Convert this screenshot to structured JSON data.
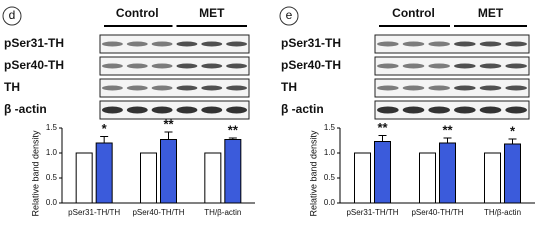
{
  "chart_data": [
    {
      "type": "bar",
      "panel_label": "d",
      "blot_rows": [
        "pSer31-TH",
        "pSer40-TH",
        "TH",
        "β -actin"
      ],
      "y_label": "Relative band density",
      "categories": [
        "pSer31-TH/TH",
        "pSer40-TH/TH",
        "TH/β-actin"
      ],
      "series": [
        {
          "name": "Control",
          "color": "#ffffff",
          "values": [
            1,
            1,
            1
          ]
        },
        {
          "name": "MET",
          "color": "#3b5bdb",
          "values": [
            1.2,
            1.27,
            1.27
          ],
          "errors": [
            0.13,
            0.15,
            0.03
          ],
          "value_labels": [
            "*",
            "**",
            "**"
          ]
        }
      ],
      "ylim": [
        0,
        1.5
      ],
      "yticks": [
        {
          "value": 0,
          "label": "0.0"
        },
        {
          "value": 0.5,
          "label": "0.5"
        },
        {
          "value": 1,
          "label": "1.0"
        },
        {
          "value": 1.5,
          "label": "1.5"
        }
      ]
    },
    {
      "type": "bar",
      "panel_label": "e",
      "blot_rows": [
        "pSer31-TH",
        "pSer40-TH",
        "TH",
        "β -actin"
      ],
      "y_label": "Relative band density",
      "categories": [
        "pSer31-TH/TH",
        "pSer40-TH/TH",
        "TH/β-actin"
      ],
      "series": [
        {
          "name": "Control",
          "color": "#ffffff",
          "values": [
            1,
            1,
            1
          ]
        },
        {
          "name": "MET",
          "color": "#3b5bdb",
          "values": [
            1.23,
            1.2,
            1.18
          ],
          "errors": [
            0.12,
            0.1,
            0.1
          ],
          "value_labels": [
            "**",
            "**",
            "*"
          ]
        }
      ],
      "ylim": [
        0,
        1.5
      ],
      "yticks": [
        {
          "value": 0,
          "label": "0.0"
        },
        {
          "value": 0.5,
          "label": "0.5"
        },
        {
          "value": 1,
          "label": "1.0"
        },
        {
          "value": 1.5,
          "label": "1.5"
        }
      ]
    }
  ]
}
